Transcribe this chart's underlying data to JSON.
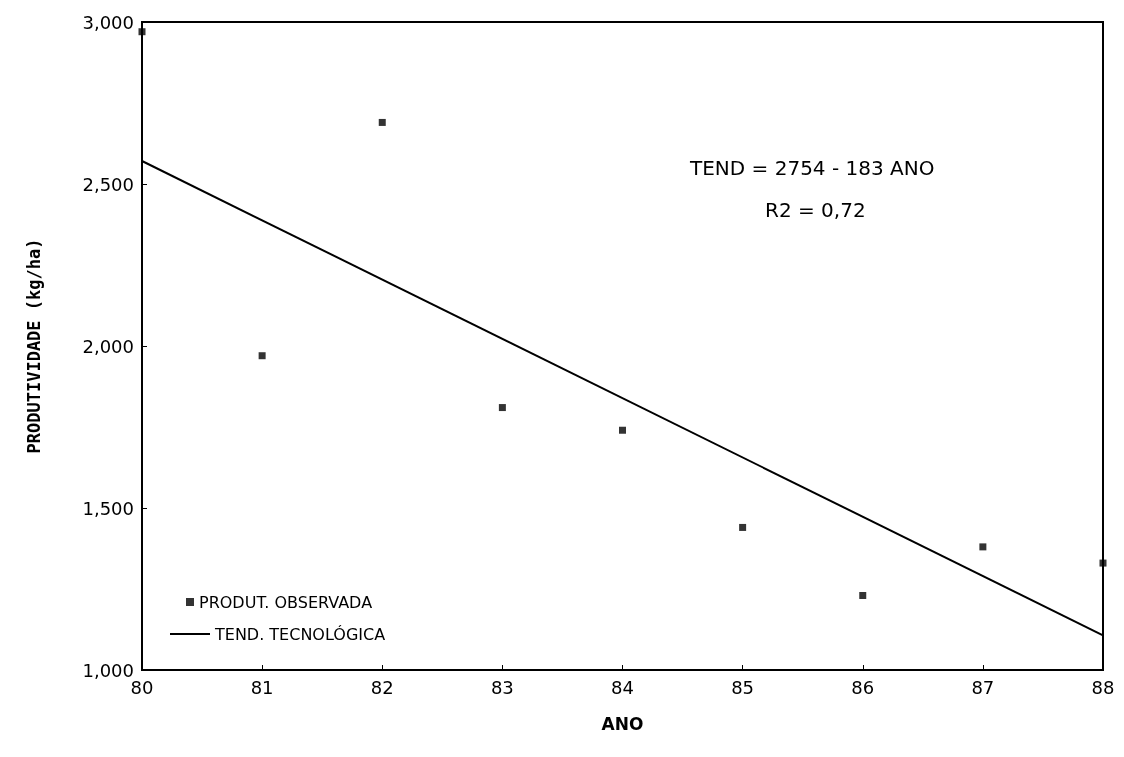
{
  "chart_data": {
    "type": "scatter",
    "xlabel": "ANO",
    "ylabel": "PRODUTIVIDADE (kg/ha)",
    "x": [
      80,
      81,
      82,
      83,
      84,
      85,
      86,
      87,
      88
    ],
    "series": [
      {
        "name": "PRODUT. OBSERVADA",
        "type": "scatter",
        "color": "#000000",
        "marker": "square",
        "values": [
          2970,
          1970,
          2690,
          1810,
          1740,
          1440,
          1230,
          1380,
          1330
        ]
      },
      {
        "name": "TEND. TECNOLÓGICA",
        "type": "line",
        "color": "#000000",
        "marker": "none",
        "line_style": "solid",
        "x": [
          80,
          88
        ],
        "values": [
          2571,
          1107
        ]
      }
    ],
    "xlim": [
      80,
      88
    ],
    "xticks": [
      80,
      81,
      82,
      83,
      84,
      85,
      86,
      87,
      88
    ],
    "ylim": [
      1000,
      3000
    ],
    "yticks": [
      {
        "value": 1000,
        "label": "1,000"
      },
      {
        "value": 1500,
        "label": "1,500"
      },
      {
        "value": 2000,
        "label": "2,000"
      },
      {
        "value": 2500,
        "label": "2,500"
      },
      {
        "value": 3000,
        "label": "3,000"
      }
    ],
    "grid": false,
    "legend": "bottom left",
    "annotations": [
      "TEND = 2754 - 183 ANO",
      "R2 = 0,72"
    ]
  }
}
